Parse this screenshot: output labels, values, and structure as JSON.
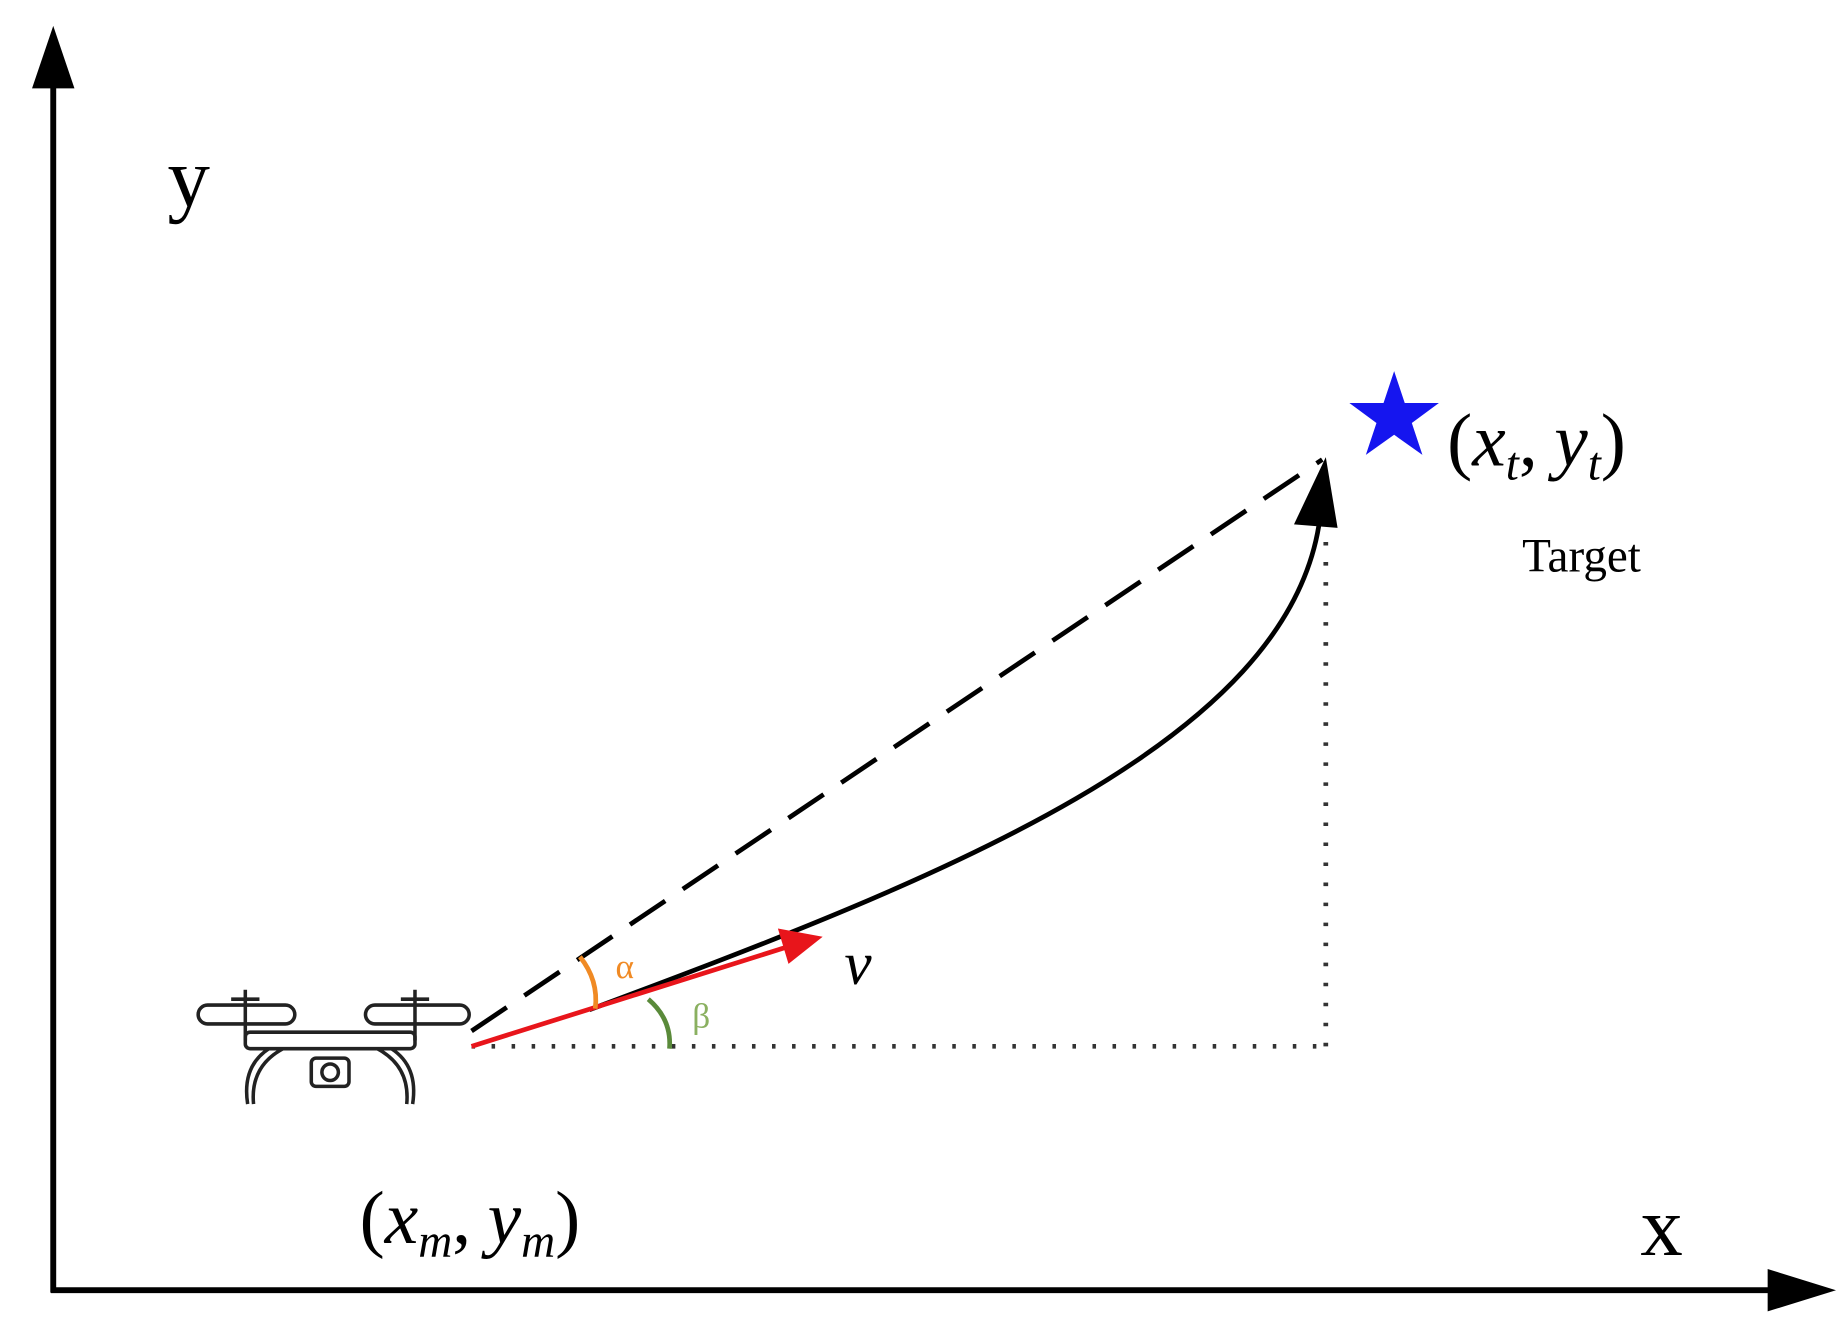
{
  "axes": {
    "y_label": "y",
    "x_label": "x"
  },
  "target": {
    "coord": [
      "(",
      "x",
      "t",
      ",",
      "y",
      "t",
      ")"
    ],
    "label": "Target"
  },
  "start": {
    "coord": [
      "(",
      "x",
      "m",
      ",",
      "y",
      "m",
      ")"
    ]
  },
  "velocity_label": "v",
  "angles": {
    "alpha": "α",
    "beta": "β"
  }
}
